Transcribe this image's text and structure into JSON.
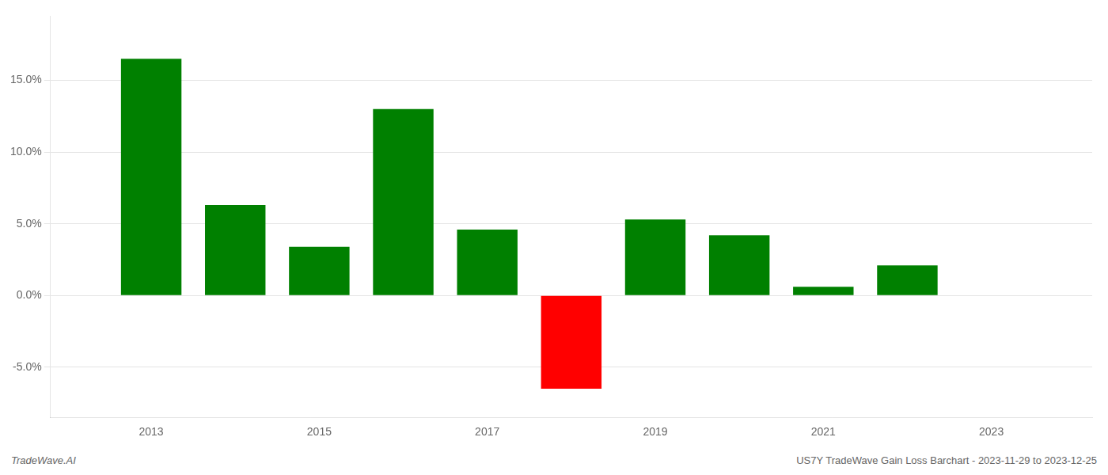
{
  "chart_data": {
    "type": "bar",
    "x": [
      2013,
      2014,
      2015,
      2016,
      2017,
      2018,
      2019,
      2020,
      2021,
      2022
    ],
    "values": [
      0.165,
      0.063,
      0.034,
      0.13,
      0.046,
      -0.065,
      0.053,
      0.042,
      0.006,
      0.021
    ],
    "colors": [
      "#008000",
      "#008000",
      "#008000",
      "#008000",
      "#008000",
      "#ff0000",
      "#008000",
      "#008000",
      "#008000",
      "#008000"
    ],
    "xlim": [
      2011.8,
      2024.2
    ],
    "xticks": [
      2013,
      2015,
      2017,
      2019,
      2021,
      2023
    ],
    "ylim": [
      -0.085,
      0.195
    ],
    "yticks": [
      {
        "value": -0.05,
        "label": "-5.0%"
      },
      {
        "value": 0.0,
        "label": "0.0%"
      },
      {
        "value": 0.05,
        "label": "5.0%"
      },
      {
        "value": 0.1,
        "label": "10.0%"
      },
      {
        "value": 0.15,
        "label": "15.0%"
      }
    ],
    "grid": "y",
    "annotations": [
      "TradeWave.AI",
      "US7Y TradeWave Gain Loss Barchart - 2023-11-29 to 2023-12-25"
    ]
  }
}
